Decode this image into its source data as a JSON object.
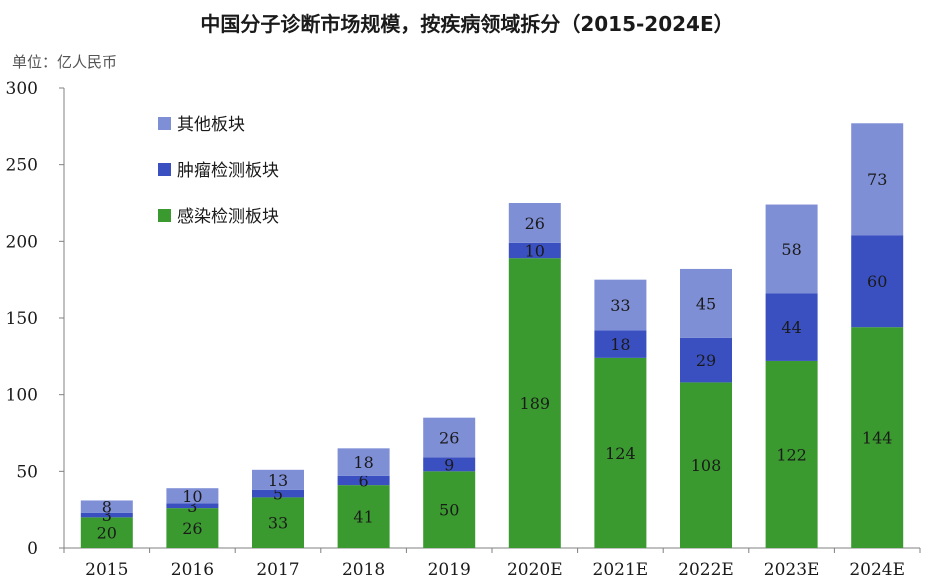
{
  "chart_data": {
    "type": "bar",
    "stacked": true,
    "title": "中国分子诊断市场规模，按疾病领域拆分（2015-2024E）",
    "unit_label": "单位：亿人民币",
    "categories": [
      "2015",
      "2016",
      "2017",
      "2018",
      "2019",
      "2020E",
      "2021E",
      "2022E",
      "2023E",
      "2024E"
    ],
    "series": [
      {
        "name": "感染检测板块",
        "color": "#3a9a2f",
        "values": [
          20,
          26,
          33,
          41,
          50,
          189,
          124,
          108,
          122,
          144
        ]
      },
      {
        "name": "肿瘤检测板块",
        "color": "#3a50c0",
        "values": [
          3,
          3,
          5,
          6,
          9,
          10,
          18,
          29,
          44,
          60
        ]
      },
      {
        "name": "其他板块",
        "color": "#7f8fd6",
        "values": [
          8,
          10,
          13,
          18,
          26,
          26,
          33,
          45,
          58,
          73
        ]
      }
    ],
    "legend_order": [
      "其他板块",
      "肿瘤检测板块",
      "感染检测板块"
    ],
    "ylim": [
      0,
      300
    ],
    "yticks": [
      0,
      50,
      100,
      150,
      200,
      250,
      300
    ],
    "legend_position": "top-left",
    "grid": false
  }
}
